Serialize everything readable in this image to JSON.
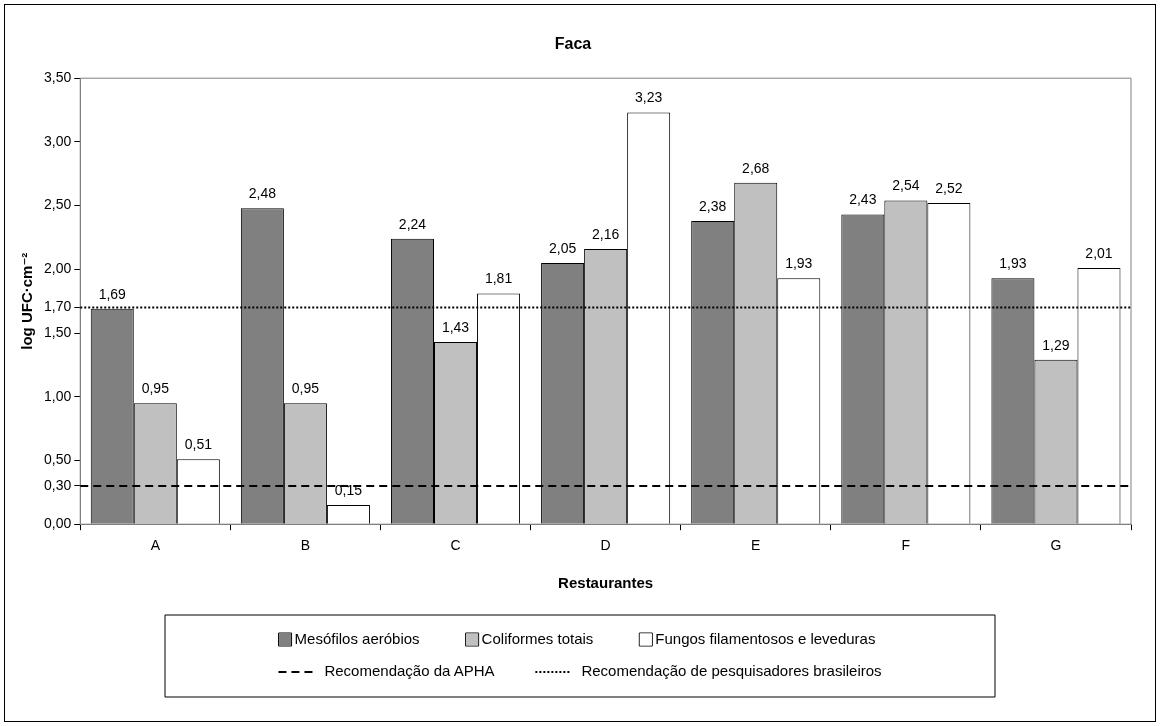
{
  "chart_data": {
    "type": "bar",
    "title": "Faca",
    "xlabel": "Restaurantes",
    "ylabel": "log UFC·cm⁻²",
    "categories": [
      "A",
      "B",
      "C",
      "D",
      "E",
      "F",
      "G"
    ],
    "series": [
      {
        "name": "Mesófilos aeróbios",
        "color": "#808080",
        "values": [
          1.69,
          2.48,
          2.24,
          2.05,
          2.38,
          2.43,
          1.93
        ],
        "value_labels": [
          "1,69",
          "2,48",
          "2,24",
          "2,05",
          "2,38",
          "2,43",
          "1,93"
        ]
      },
      {
        "name": "Coliformes totais",
        "color": "#c0c0c0",
        "values": [
          0.95,
          0.95,
          1.43,
          2.16,
          2.68,
          2.54,
          1.29
        ],
        "value_labels": [
          "0,95",
          "0,95",
          "1,43",
          "2,16",
          "2,68",
          "2,54",
          "1,29"
        ]
      },
      {
        "name": "Fungos filamentosos e leveduras",
        "color": "#ffffff",
        "values": [
          0.51,
          0.15,
          1.81,
          3.23,
          1.93,
          2.52,
          2.01
        ],
        "value_labels": [
          "0,51",
          "0,15",
          "1,81",
          "3,23",
          "1,93",
          "2,52",
          "2,01"
        ]
      }
    ],
    "ylim": [
      0,
      3.5
    ],
    "yticks": [
      {
        "value": 0,
        "label": "0,00"
      },
      {
        "value": 0.3,
        "label": "0,30"
      },
      {
        "value": 0.5,
        "label": "0,50"
      },
      {
        "value": 1,
        "label": "1,00"
      },
      {
        "value": 1.5,
        "label": "1,50"
      },
      {
        "value": 1.7,
        "label": "1,70"
      },
      {
        "value": 2,
        "label": "2,00"
      },
      {
        "value": 2.5,
        "label": "2,50"
      },
      {
        "value": 3,
        "label": "3,00"
      },
      {
        "value": 3.5,
        "label": "3,50"
      }
    ],
    "ref_lines": [
      {
        "axis": "y",
        "value": 0.3,
        "label": "Recomendação da APHA",
        "color": "#000000",
        "line_style": "dashed"
      },
      {
        "axis": "y",
        "value": 1.7,
        "label": "Recomendação de pesquisadores brasileiros",
        "color": "#000000",
        "line_style": "dotted"
      }
    ],
    "grid": false,
    "legend": "bottom"
  }
}
